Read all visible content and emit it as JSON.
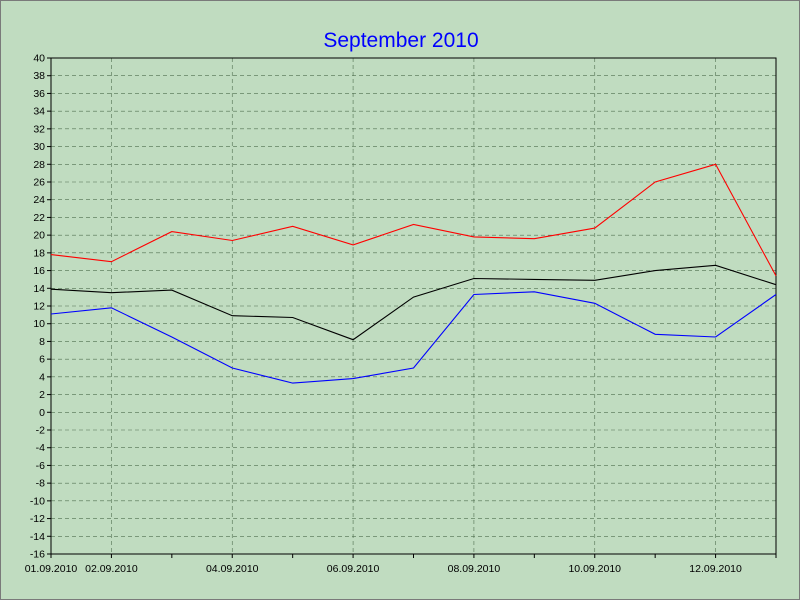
{
  "chart_data": {
    "type": "line",
    "title": "September 2010",
    "xlabel": "",
    "ylabel": "",
    "ylim": [
      -16,
      40
    ],
    "y_step": 2,
    "grid": true,
    "legend": "none",
    "x": [
      "01.09.2010",
      "02.09.2010",
      "03.09.2010",
      "04.09.2010",
      "05.09.2010",
      "06.09.2010",
      "07.09.2010",
      "08.09.2010",
      "09.09.2010",
      "10.09.2010",
      "11.09.2010",
      "12.09.2010",
      "13.09.2010"
    ],
    "x_tick_labels": [
      "01.09.2010",
      "02.09.2010",
      "",
      "04.09.2010",
      "",
      "06.09.2010",
      "",
      "08.09.2010",
      "",
      "10.09.2010",
      "",
      "12.09.2010",
      ""
    ],
    "series": [
      {
        "color": "#ff0000",
        "values": [
          17.8,
          17.0,
          20.4,
          19.4,
          21.0,
          18.9,
          21.2,
          19.8,
          19.6,
          20.8,
          26.0,
          28.0,
          15.4
        ]
      },
      {
        "color": "#000000",
        "values": [
          13.9,
          13.5,
          13.8,
          10.9,
          10.7,
          8.2,
          13.0,
          15.1,
          15.0,
          14.9,
          16.0,
          16.6,
          14.4
        ]
      },
      {
        "color": "#0000ff",
        "values": [
          11.1,
          11.8,
          8.5,
          5.0,
          3.3,
          3.8,
          5.0,
          13.3,
          13.6,
          12.3,
          8.8,
          8.5,
          13.3
        ]
      }
    ]
  },
  "colors": {
    "plot_background": "#c0dcc0",
    "grid": "#4f6f4f",
    "title": "#0000ff"
  }
}
